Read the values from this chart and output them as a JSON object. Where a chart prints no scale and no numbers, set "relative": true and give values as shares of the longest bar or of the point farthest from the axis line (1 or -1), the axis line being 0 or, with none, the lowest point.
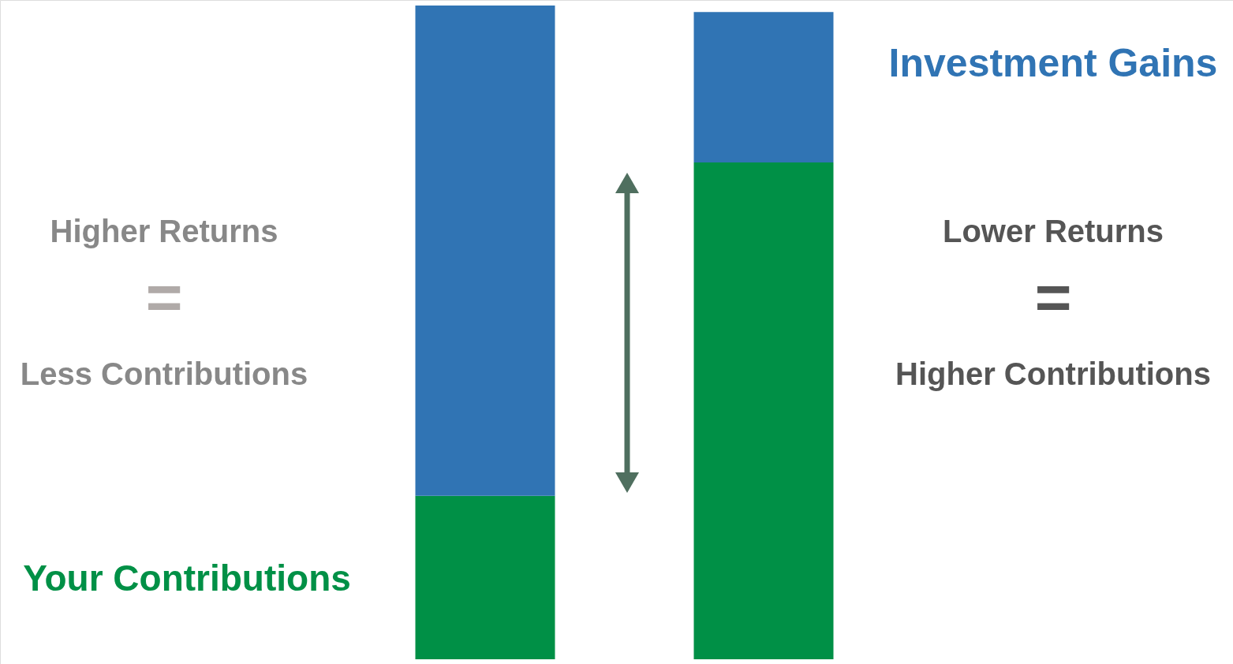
{
  "chart_data": {
    "type": "bar",
    "stacked": true,
    "relative": true,
    "categories": [
      null,
      null
    ],
    "series": [
      {
        "name": "Your Contributions",
        "color": "#009046",
        "values": [
          0.25,
          0.76
        ]
      },
      {
        "name": "Investment Gains",
        "color": "#3074b4",
        "values": [
          0.75,
          0.23
        ]
      }
    ],
    "annotations": [
      "Higher Returns",
      "=",
      "Less Contributions",
      "Lower Returns",
      "=",
      "Higher Contributions"
    ]
  }
}
